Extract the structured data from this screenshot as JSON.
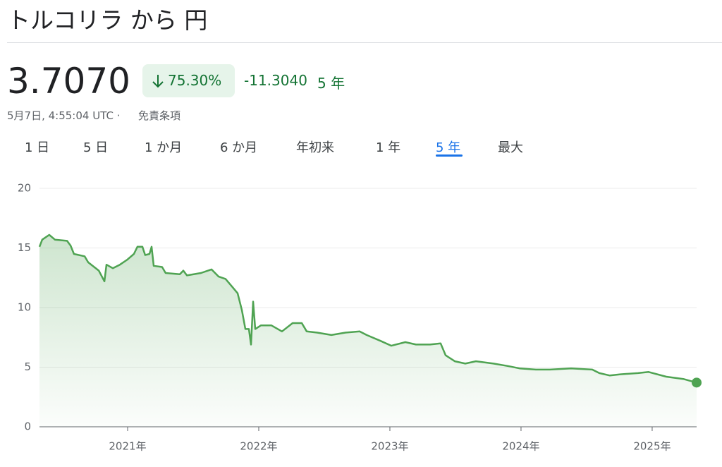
{
  "header": {
    "title": "トルコリラ から 円"
  },
  "quote": {
    "price": "3.7070",
    "change_percent": "75.30%",
    "change": "-11.3040",
    "period": "5 年",
    "timestamp": "5月7日, 4:55:04 UTC ·",
    "disclaimer": "免責条項"
  },
  "tabs": {
    "items": [
      "1 日",
      "5 日",
      "1 か月",
      "6 か月",
      "年初来",
      "1 年",
      "5 年",
      "最大"
    ],
    "selected": 6
  },
  "chart_data": {
    "type": "line",
    "color": "#4fa352",
    "grid": true,
    "x": [
      2020.328,
      2020.349,
      2020.403,
      2020.446,
      2020.538,
      2020.565,
      2020.591,
      2020.672,
      2020.699,
      2020.78,
      2020.823,
      2020.839,
      2020.887,
      2020.941,
      2020.995,
      2021.048,
      2021.075,
      2021.113,
      2021.134,
      2021.167,
      2021.183,
      2021.199,
      2021.263,
      2021.29,
      2021.398,
      2021.425,
      2021.452,
      2021.559,
      2021.64,
      2021.694,
      2021.747,
      2021.801,
      2021.839,
      2021.871,
      2021.898,
      2021.925,
      2021.941,
      2021.957,
      2021.973,
      2022.016,
      2022.097,
      2022.177,
      2022.258,
      2022.328,
      2022.366,
      2022.446,
      2022.554,
      2022.661,
      2022.769,
      2022.823,
      2022.93,
      2023.011,
      2023.118,
      2023.199,
      2023.306,
      2023.387,
      2023.425,
      2023.495,
      2023.575,
      2023.656,
      2023.79,
      2023.898,
      2023.989,
      2024.113,
      2024.22,
      2024.382,
      2024.543,
      2024.597,
      2024.677,
      2024.758,
      2024.892,
      2024.973,
      2025.108,
      2025.242,
      2025.339
    ],
    "values": [
      15.1,
      15.7,
      16.1,
      15.7,
      15.6,
      15.2,
      14.5,
      14.3,
      13.8,
      13.1,
      12.2,
      13.6,
      13.3,
      13.6,
      14.0,
      14.5,
      15.1,
      15.1,
      14.4,
      14.5,
      15.1,
      13.5,
      13.4,
      12.9,
      12.8,
      13.1,
      12.7,
      12.9,
      13.2,
      12.6,
      12.4,
      11.7,
      11.2,
      9.8,
      8.2,
      8.2,
      6.9,
      10.5,
      8.2,
      8.5,
      8.5,
      8.0,
      8.7,
      8.7,
      8.0,
      7.9,
      7.7,
      7.9,
      8.0,
      7.7,
      7.2,
      6.8,
      7.1,
      6.9,
      6.9,
      7.0,
      6.0,
      5.5,
      5.3,
      5.5,
      5.3,
      5.1,
      4.9,
      4.8,
      4.8,
      4.9,
      4.8,
      4.5,
      4.3,
      4.4,
      4.5,
      4.6,
      4.2,
      4.0,
      3.707
    ],
    "xlim": [
      2020.328,
      2025.339
    ],
    "ylim": [
      0,
      20
    ],
    "yticks": [
      0,
      5,
      10,
      15,
      20
    ],
    "xticks": [
      {
        "value": 2021,
        "label": "2021年"
      },
      {
        "value": 2022,
        "label": "2022年"
      },
      {
        "value": 2023,
        "label": "2023年"
      },
      {
        "value": 2024,
        "label": "2024年"
      },
      {
        "value": 2025,
        "label": "2025年"
      }
    ]
  }
}
